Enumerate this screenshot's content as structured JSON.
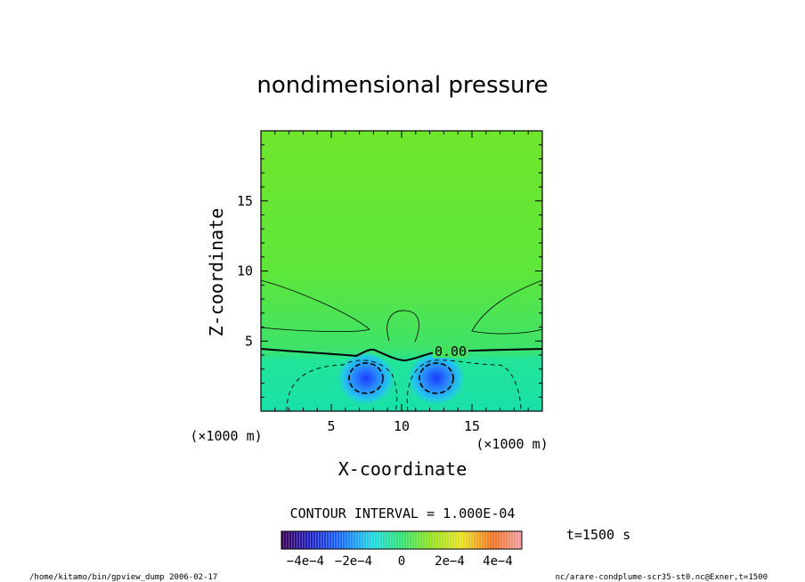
{
  "chart_data": {
    "type": "contour",
    "title": "nondimensional pressure",
    "xlabel": "X-coordinate",
    "ylabel": "Z-coordinate",
    "x_unit": "(×1000 m)",
    "y_unit": "(×1000 m)",
    "xlim": [
      0,
      20
    ],
    "ylim": [
      0,
      20
    ],
    "x_ticks": [
      5,
      10,
      15
    ],
    "y_ticks": [
      5,
      10,
      15
    ],
    "contour_interval_text": "CONTOUR INTERVAL = 1.000E-04",
    "contour_label": "0.00",
    "time_label": "t=1500 s",
    "colorbar": {
      "range": [
        -0.0005,
        0.0005
      ],
      "tick_values": [
        -0.0004,
        -0.0002,
        0,
        0.0002,
        0.0004
      ],
      "tick_labels": [
        "−4e−4",
        "−2e−4",
        "0",
        "2e−4",
        "4e−4"
      ]
    },
    "footer_left": "/home/kitamo/bin/gpview_dump  2006-02-17",
    "footer_right": "nc/arare-condplume-scr35-st0.nc@Exner,t=1500",
    "features": [
      {
        "name": "zero contour",
        "value": 0.0,
        "z_level": 4.2
      },
      {
        "name": "negative minimum left",
        "x": 7.5,
        "z": 2.3,
        "value": -0.0003
      },
      {
        "name": "negative minimum right",
        "x": 12.5,
        "z": 2.3,
        "value": -0.0003
      },
      {
        "name": "positive contour center",
        "x": 10.0,
        "z": 5.5,
        "value": 0.0001
      }
    ]
  }
}
